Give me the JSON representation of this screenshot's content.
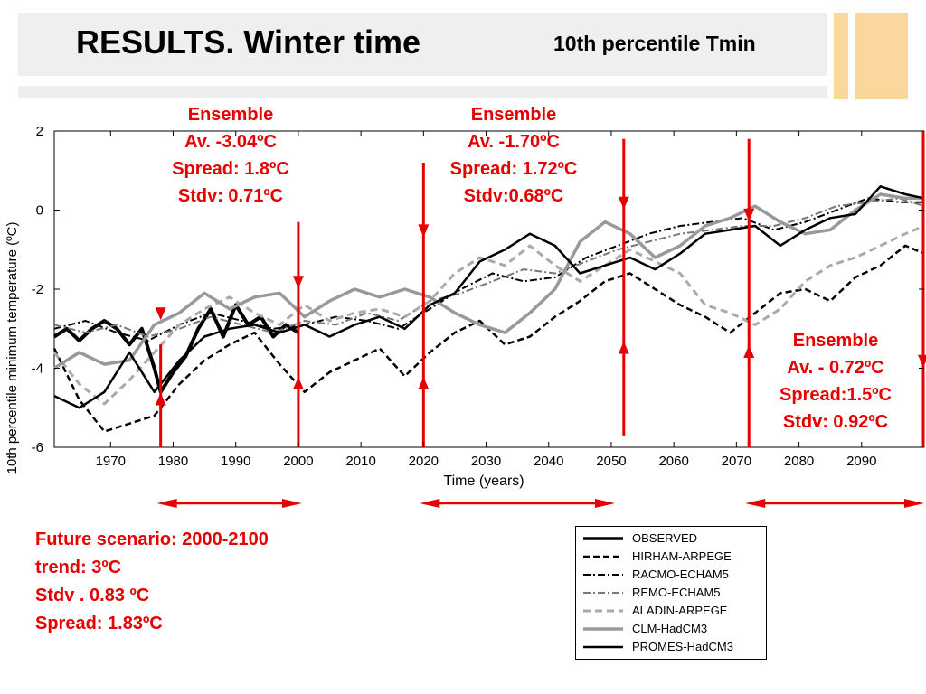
{
  "slide": {
    "title": "RESULTS. Winter time",
    "subtitle": "10th percentile Tmin"
  },
  "colors": {
    "accent": "#e60000",
    "deco": "#fbd79e",
    "band": "#efefef"
  },
  "chart_data": {
    "type": "line",
    "xlabel": "Time (years)",
    "ylabel": "10th percentile minimum temperature (ºC)",
    "xlim": [
      1961,
      2100
    ],
    "ylim": [
      -6,
      2
    ],
    "xticks": [
      1970,
      1980,
      1990,
      2000,
      2010,
      2020,
      2030,
      2040,
      2050,
      2060,
      2070,
      2080,
      2090
    ],
    "yticks": [
      2,
      0,
      -2,
      -4,
      -6
    ],
    "grid": false,
    "legend_position": "bottom-right (outside plot)",
    "series": [
      {
        "name": "OBSERVED",
        "style": "solid-thick",
        "color": "#000000",
        "x": [
          1961,
          1963,
          1965,
          1967,
          1969,
          1971,
          1973,
          1975,
          1977,
          1978,
          1980,
          1982,
          1984,
          1986,
          1988,
          1990,
          1992,
          1994,
          1996,
          1998,
          2000
        ],
        "y": [
          -3.2,
          -3.0,
          -3.3,
          -3.0,
          -2.8,
          -3.0,
          -3.4,
          -3.0,
          -4.0,
          -4.6,
          -4.1,
          -3.7,
          -3.0,
          -2.5,
          -3.2,
          -2.4,
          -2.9,
          -2.7,
          -3.2,
          -2.9,
          -3.1
        ]
      },
      {
        "name": "HIRHAM-ARPEGE",
        "style": "dashed",
        "color": "#000000",
        "x": [
          1961,
          1965,
          1969,
          1973,
          1977,
          1981,
          1985,
          1989,
          1993,
          1997,
          2001,
          2005,
          2009,
          2013,
          2017,
          2021,
          2025,
          2029,
          2033,
          2037,
          2041,
          2045,
          2049,
          2053,
          2057,
          2061,
          2065,
          2069,
          2073,
          2077,
          2081,
          2085,
          2089,
          2093,
          2097,
          2100
        ],
        "y": [
          -3.5,
          -4.8,
          -5.6,
          -5.4,
          -5.2,
          -4.4,
          -3.8,
          -3.4,
          -3.1,
          -3.9,
          -4.6,
          -4.1,
          -3.8,
          -3.5,
          -4.2,
          -3.6,
          -3.1,
          -2.8,
          -3.4,
          -3.2,
          -2.7,
          -2.3,
          -1.8,
          -1.6,
          -2.0,
          -2.4,
          -2.7,
          -3.1,
          -2.6,
          -2.1,
          -2.0,
          -2.3,
          -1.7,
          -1.4,
          -0.9,
          -1.1
        ]
      },
      {
        "name": "RACMO-ECHAM5",
        "style": "dash-dot",
        "color": "#000000",
        "x": [
          1961,
          1966,
          1971,
          1976,
          1981,
          1986,
          1991,
          1996,
          2001,
          2006,
          2011,
          2016,
          2021,
          2026,
          2031,
          2036,
          2041,
          2046,
          2051,
          2056,
          2061,
          2066,
          2071,
          2076,
          2081,
          2086,
          2091,
          2096,
          2100
        ],
        "y": [
          -3.0,
          -2.8,
          -3.1,
          -3.3,
          -2.9,
          -2.6,
          -2.8,
          -3.0,
          -2.9,
          -2.7,
          -2.8,
          -3.0,
          -2.5,
          -2.0,
          -1.6,
          -1.8,
          -1.7,
          -1.2,
          -0.9,
          -0.6,
          -0.4,
          -0.3,
          -0.2,
          -0.5,
          -0.3,
          0.0,
          0.3,
          0.2,
          0.2
        ]
      },
      {
        "name": "REMO-ECHAM5",
        "style": "dash-dot-gray",
        "color": "#777777",
        "x": [
          1961,
          1966,
          1971,
          1976,
          1981,
          1986,
          1991,
          1996,
          2001,
          2006,
          2011,
          2016,
          2021,
          2026,
          2031,
          2036,
          2041,
          2046,
          2051,
          2056,
          2061,
          2066,
          2071,
          2076,
          2081,
          2086,
          2091,
          2096,
          2100
        ],
        "y": [
          -2.9,
          -3.1,
          -2.9,
          -3.2,
          -3.0,
          -2.7,
          -2.9,
          -3.1,
          -2.8,
          -2.9,
          -2.6,
          -2.8,
          -2.3,
          -2.1,
          -1.8,
          -1.5,
          -1.6,
          -1.3,
          -1.0,
          -0.8,
          -0.6,
          -0.5,
          -0.4,
          -0.4,
          -0.2,
          0.1,
          0.2,
          0.3,
          0.1
        ]
      },
      {
        "name": "ALADIN-ARPEGE",
        "style": "dashed-gray",
        "color": "#aaaaaa",
        "x": [
          1961,
          1965,
          1969,
          1973,
          1977,
          1981,
          1985,
          1989,
          1993,
          1997,
          2001,
          2005,
          2009,
          2013,
          2017,
          2021,
          2025,
          2029,
          2033,
          2037,
          2041,
          2045,
          2049,
          2053,
          2057,
          2061,
          2065,
          2069,
          2073,
          2077,
          2081,
          2085,
          2089,
          2093,
          2097,
          2100
        ],
        "y": [
          -3.6,
          -4.4,
          -4.9,
          -4.3,
          -3.6,
          -2.9,
          -2.5,
          -2.2,
          -2.6,
          -2.9,
          -2.4,
          -2.8,
          -2.6,
          -2.5,
          -2.7,
          -2.3,
          -1.6,
          -1.2,
          -1.4,
          -0.9,
          -1.4,
          -1.8,
          -1.4,
          -1.0,
          -1.3,
          -1.6,
          -2.4,
          -2.6,
          -2.9,
          -2.5,
          -1.8,
          -1.4,
          -1.2,
          -0.9,
          -0.6,
          -0.4
        ]
      },
      {
        "name": "CLM-HadCM3",
        "style": "solid-gray",
        "color": "#999999",
        "x": [
          1961,
          1965,
          1969,
          1973,
          1977,
          1981,
          1985,
          1989,
          1993,
          1997,
          2001,
          2005,
          2009,
          2013,
          2017,
          2021,
          2025,
          2029,
          2033,
          2037,
          2041,
          2045,
          2049,
          2053,
          2057,
          2061,
          2065,
          2069,
          2073,
          2077,
          2081,
          2085,
          2089,
          2093,
          2097,
          2100
        ],
        "y": [
          -4.0,
          -3.6,
          -3.9,
          -3.8,
          -2.9,
          -2.6,
          -2.1,
          -2.5,
          -2.2,
          -2.1,
          -2.7,
          -2.3,
          -2.0,
          -2.2,
          -2.0,
          -2.2,
          -2.6,
          -2.9,
          -3.1,
          -2.6,
          -2.0,
          -0.8,
          -0.3,
          -0.6,
          -1.2,
          -0.9,
          -0.4,
          -0.2,
          0.1,
          -0.3,
          -0.6,
          -0.5,
          0.0,
          0.4,
          0.3,
          0.3
        ]
      },
      {
        "name": "PROMES-HadCM3",
        "style": "solid",
        "color": "#000000",
        "x": [
          1961,
          1965,
          1969,
          1973,
          1977,
          1981,
          1985,
          1989,
          1993,
          1997,
          2001,
          2005,
          2009,
          2013,
          2017,
          2021,
          2025,
          2029,
          2033,
          2037,
          2041,
          2045,
          2049,
          2053,
          2057,
          2061,
          2065,
          2069,
          2073,
          2077,
          2081,
          2085,
          2089,
          2093,
          2097,
          2100
        ],
        "y": [
          -4.7,
          -5.0,
          -4.6,
          -3.6,
          -4.6,
          -3.8,
          -3.2,
          -3.0,
          -2.9,
          -3.1,
          -2.9,
          -3.2,
          -2.9,
          -2.7,
          -3.0,
          -2.4,
          -2.1,
          -1.3,
          -1.0,
          -0.6,
          -0.9,
          -1.6,
          -1.4,
          -1.2,
          -1.5,
          -1.1,
          -0.6,
          -0.5,
          -0.4,
          -0.9,
          -0.5,
          -0.2,
          -0.1,
          0.6,
          0.4,
          0.3
        ]
      }
    ],
    "markers": [
      {
        "year": 1978,
        "y_from": -6,
        "y_to": -3.4,
        "arrows": [
          -2.6,
          -4.8
        ]
      },
      {
        "year": 2000,
        "y_from": -6,
        "y_to": -0.3,
        "arrows": [
          -1.8,
          -4.4
        ]
      },
      {
        "year": 2020,
        "y_from": -6,
        "y_to": 1.2,
        "arrows": [
          -0.5,
          -4.4
        ]
      },
      {
        "year": 2052,
        "y_from": -5.7,
        "y_to": 1.8,
        "arrows": [
          0.2,
          -3.5
        ]
      },
      {
        "year": 2072,
        "y_from": -6,
        "y_to": 1.8,
        "arrows": [
          -0.1,
          -3.6
        ]
      },
      {
        "year": 2100,
        "y_from": -6,
        "y_to": 2.0,
        "arrows": [
          -3.8
        ]
      }
    ],
    "ranges": [
      {
        "from": 1978,
        "to": 2000
      },
      {
        "from": 2020,
        "to": 2050
      },
      {
        "from": 2072,
        "to": 2100
      }
    ]
  },
  "annotations": [
    {
      "line1": "Ensemble",
      "line2": "Av. -3.04ºC",
      "line3": "Spread: 1.8ºC",
      "line4": "Stdv: 0.71ºC"
    },
    {
      "line1": "Ensemble",
      "line2": "Av. -1.70ºC",
      "line3": "Spread: 1.72ºC",
      "line4": "Stdv:0.68ºC"
    },
    {
      "line1": "Ensemble",
      "line2": "Av. - 0.72ºC",
      "line3": "Spread:1.5ºC",
      "line4": "Stdv: 0.92ºC"
    }
  ],
  "scenario": {
    "line1": "Future scenario: 2000-2100",
    "line2": "trend: 3ºC",
    "line3": "Stdv . 0.83 ºC",
    "line4": "Spread: 1.83ºC"
  }
}
